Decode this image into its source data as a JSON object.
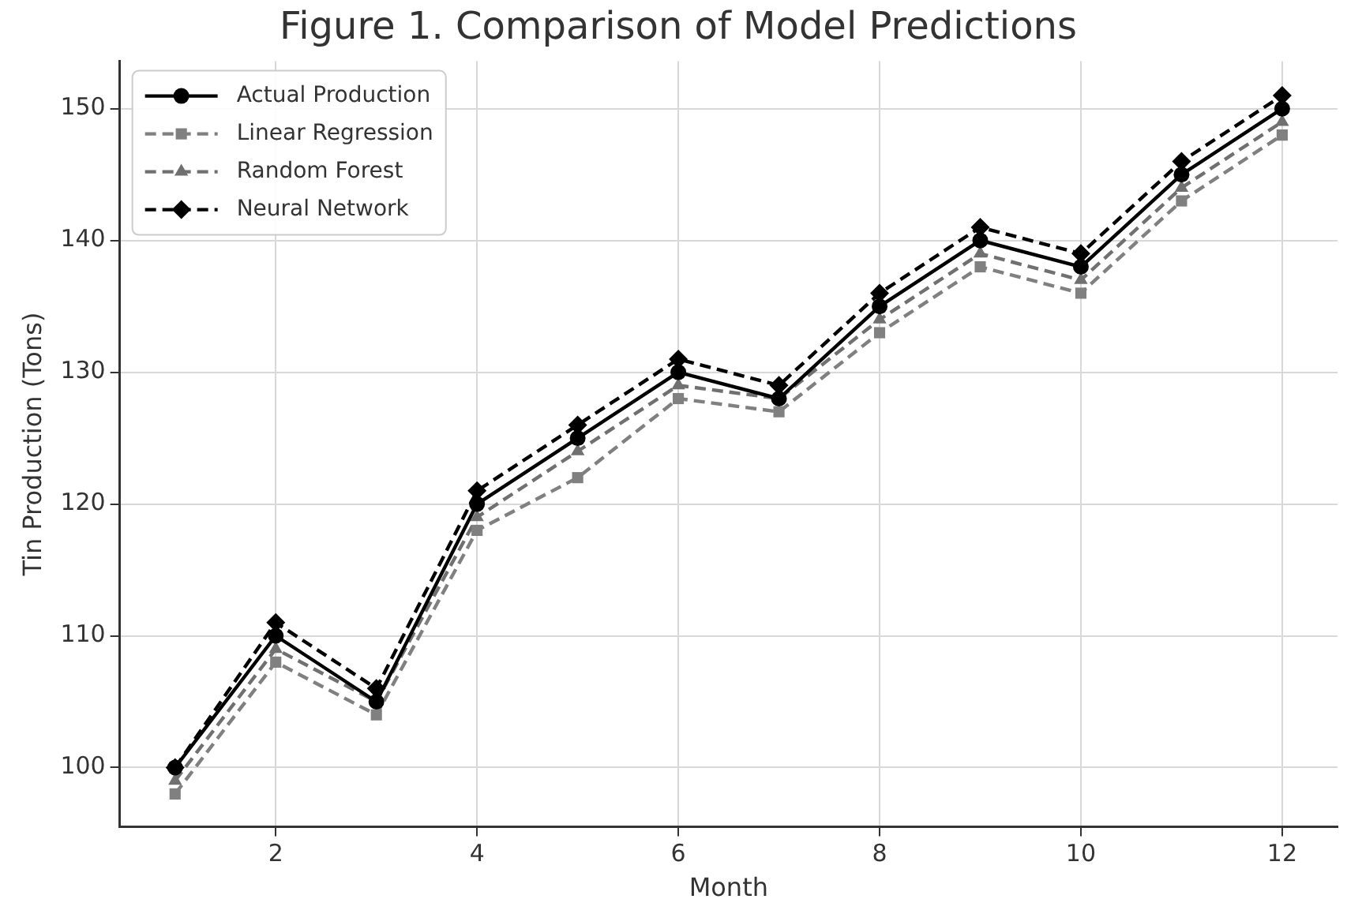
{
  "chart_data": {
    "type": "line",
    "title": "Figure 1. Comparison of Model Predictions",
    "xlabel": "Month",
    "ylabel": "Tin Production (Tons)",
    "x": [
      1,
      2,
      3,
      4,
      5,
      6,
      7,
      8,
      9,
      10,
      11,
      12
    ],
    "xlim": [
      0.45,
      12.55
    ],
    "xticks": [
      2,
      4,
      6,
      8,
      10,
      12
    ],
    "ylim": [
      95.5,
      153.6
    ],
    "yticks": [
      100,
      110,
      120,
      130,
      140,
      150
    ],
    "grid": true,
    "legend": "top left",
    "series": [
      {
        "name": "Actual Production",
        "color": "#000000",
        "marker": "circle",
        "line_style": "solid",
        "values": [
          100,
          110,
          105,
          120,
          125,
          130,
          128,
          135,
          140,
          138,
          145,
          150
        ]
      },
      {
        "name": "Linear Regression",
        "color": "#808080",
        "marker": "square",
        "line_style": "dashed",
        "values": [
          98,
          108,
          104,
          118,
          122,
          128,
          127,
          133,
          138,
          136,
          143,
          148
        ]
      },
      {
        "name": "Random Forest",
        "color": "#707070",
        "marker": "triangle",
        "line_style": "dashed",
        "values": [
          99,
          109,
          105,
          119,
          124,
          129,
          128,
          134,
          139,
          137,
          144,
          149
        ]
      },
      {
        "name": "Neural Network",
        "color": "#000000",
        "marker": "diamond",
        "line_style": "dashed",
        "values": [
          100,
          111,
          106,
          121,
          126,
          131,
          129,
          136,
          141,
          139,
          146,
          151
        ]
      }
    ]
  }
}
